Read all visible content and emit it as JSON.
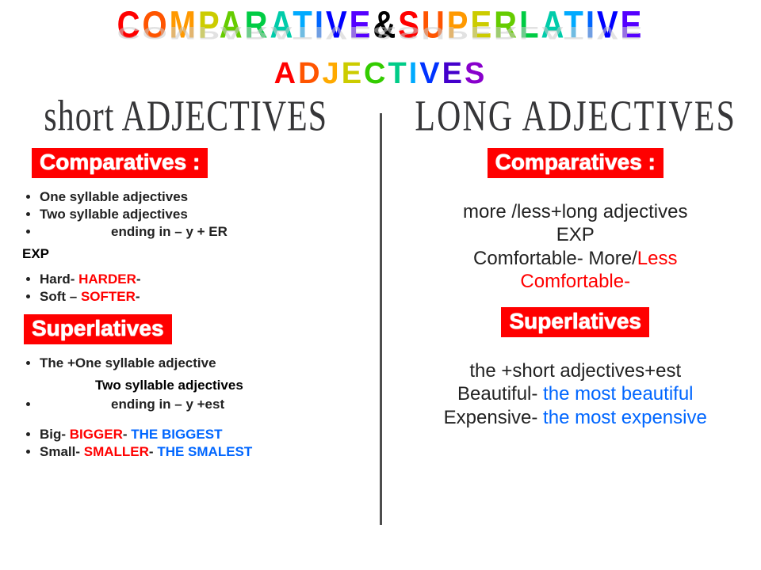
{
  "title": {
    "line1_letters": [
      {
        "t": "C",
        "c": "#ff0000"
      },
      {
        "t": "O",
        "c": "#ff5500"
      },
      {
        "t": "M",
        "c": "#ff9900"
      },
      {
        "t": "P",
        "c": "#cccc00"
      },
      {
        "t": "A",
        "c": "#66cc00"
      },
      {
        "t": "R",
        "c": "#00cc44"
      },
      {
        "t": "A",
        "c": "#00ccaa"
      },
      {
        "t": "T",
        "c": "#00aaff"
      },
      {
        "t": "I",
        "c": "#0066ff"
      },
      {
        "t": "V",
        "c": "#0000ff"
      },
      {
        "t": "E",
        "c": "#5500ff"
      },
      {
        "t": "&",
        "c": "#000000"
      },
      {
        "t": "S",
        "c": "#ff0000"
      },
      {
        "t": "U",
        "c": "#ff5500"
      },
      {
        "t": "P",
        "c": "#ff9900"
      },
      {
        "t": "E",
        "c": "#cccc00"
      },
      {
        "t": "R",
        "c": "#66cc00"
      },
      {
        "t": "L",
        "c": "#00cc44"
      },
      {
        "t": "A",
        "c": "#00ccaa"
      },
      {
        "t": "T",
        "c": "#00aaff"
      },
      {
        "t": "I",
        "c": "#0066ff"
      },
      {
        "t": "V",
        "c": "#0000ff"
      },
      {
        "t": "E",
        "c": "#5500ff"
      }
    ],
    "line2_letters": [
      {
        "t": "A",
        "c": "#ff0000"
      },
      {
        "t": "D",
        "c": "#ff5500"
      },
      {
        "t": "J",
        "c": "#ffaa00"
      },
      {
        "t": "E",
        "c": "#cccc00"
      },
      {
        "t": "C",
        "c": "#33cc00"
      },
      {
        "t": "T",
        "c": "#00cc88"
      },
      {
        "t": "I",
        "c": "#00aaff"
      },
      {
        "t": "V",
        "c": "#0033ff"
      },
      {
        "t": "E",
        "c": "#4400cc"
      },
      {
        "t": "S",
        "c": "#8800cc"
      }
    ]
  },
  "left": {
    "heading": "short ADJECTIVES",
    "section1": "Comparatives :",
    "bullets1": [
      "One syllable adjectives",
      "Two syllable adjectives"
    ],
    "bullet1_tail": "ending  in – y + ER",
    "exp": "EXP",
    "examples1": [
      {
        "base": "Hard- ",
        "form": "HARDER",
        "tail": "-"
      },
      {
        "base": "Soft – ",
        "form": "SOFTER",
        "tail": "-"
      }
    ],
    "section2": "Superlatives",
    "bullets2_first": "The +One syllable adjective",
    "bullets2_indent": "Two syllable adjectives",
    "bullets2_tail": "ending  in – y +est",
    "examples2": [
      {
        "base": "Big- ",
        "comp": "BIGGER",
        "mid": "- ",
        "sup": "THE BIGGEST"
      },
      {
        "base": "Small- ",
        "comp": "SMALLER",
        "mid": "- ",
        "sup": "THE SMALEST"
      }
    ]
  },
  "right": {
    "heading": "LONG ADJECTIVES",
    "section1": "Comparatives :",
    "comp_line1": "more /less+long adjectives",
    "comp_line2": "EXP",
    "comp_line3a": "Comfortable- More/",
    "comp_line3b": "Less",
    "comp_line4": "Comfortable-",
    "section2": "Superlatives",
    "sup_line1": "the +short adjectives+est",
    "sup_line2a": "Beautiful- ",
    "sup_line2b": "the most beautiful",
    "sup_line3a": "Expensive- ",
    "sup_line3b": "the most expensive"
  }
}
